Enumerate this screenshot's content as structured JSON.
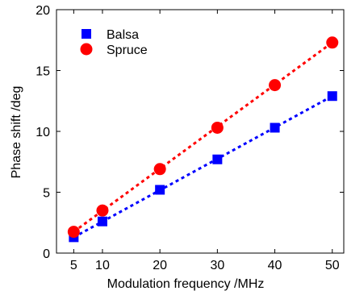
{
  "chart_data": {
    "type": "scatter",
    "title": "",
    "xlabel": "Modulation frequency /MHz",
    "ylabel": "Phase shift /deg",
    "xlim": [
      2,
      52
    ],
    "ylim": [
      0,
      20
    ],
    "xticks": [
      5,
      10,
      20,
      30,
      40,
      50
    ],
    "yticks": [
      0,
      5,
      10,
      15,
      20
    ],
    "grid": false,
    "legend_position": "top-left",
    "series": [
      {
        "name": "Balsa",
        "marker": "square",
        "color": "#0000ff",
        "fit_line": "dotted",
        "x": [
          5,
          10,
          20,
          30,
          40,
          50
        ],
        "y": [
          1.3,
          2.6,
          5.2,
          7.7,
          10.3,
          12.9
        ],
        "fit": [
          [
            5,
            1.3
          ],
          [
            50,
            12.9
          ]
        ]
      },
      {
        "name": "Spruce",
        "marker": "circle",
        "color": "#ff0000",
        "fit_line": "dotted",
        "x": [
          5,
          10,
          20,
          30,
          40,
          50
        ],
        "y": [
          1.75,
          3.5,
          6.9,
          10.3,
          13.8,
          17.3
        ],
        "fit": [
          [
            5,
            1.75
          ],
          [
            50,
            17.3
          ]
        ]
      }
    ]
  }
}
